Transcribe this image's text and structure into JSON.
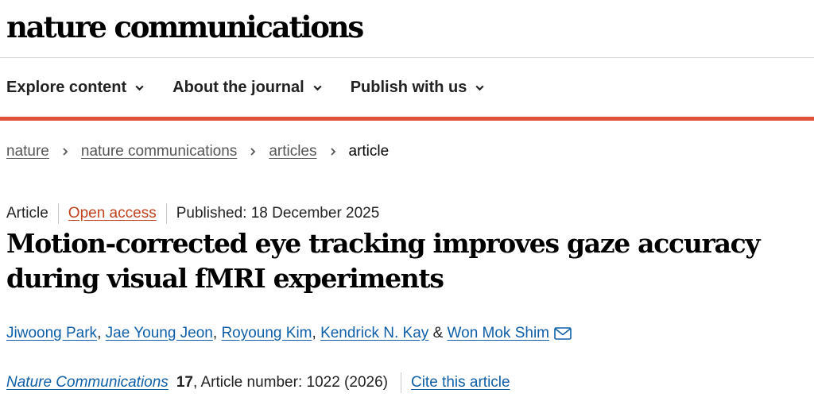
{
  "header": {
    "logo_text": "nature communications"
  },
  "nav": {
    "items": [
      {
        "label": "Explore content",
        "icon": "chevron-down-icon"
      },
      {
        "label": "About the journal",
        "icon": "chevron-down-icon"
      },
      {
        "label": "Publish with us",
        "icon": "chevron-down-icon"
      }
    ]
  },
  "breadcrumb": {
    "items": [
      "nature",
      "nature communications",
      "articles"
    ],
    "current": "article",
    "separator_icon": "chevron-right-icon"
  },
  "article": {
    "type": "Article",
    "access": "Open access",
    "published": "Published: 18 December 2025",
    "title": "Motion-corrected eye tracking improves gaze accuracy during visual fMRI experiments",
    "authors": [
      "Jiwoong Park",
      "Jae Young Jeon",
      "Royoung Kim",
      "Kendrick N. Kay",
      "Won Mok Shim"
    ],
    "author_separator": ", ",
    "last_separator": " & ",
    "contact_icon": "mail-icon",
    "journal": "Nature Communications",
    "volume": "17",
    "article_number": ", Article number: 1022 (2026)",
    "cite_label": "Cite this article"
  },
  "colors": {
    "accent_red": "#e0533a",
    "link_blue": "#0f5fa8",
    "open_access_orange": "#c0421f"
  }
}
